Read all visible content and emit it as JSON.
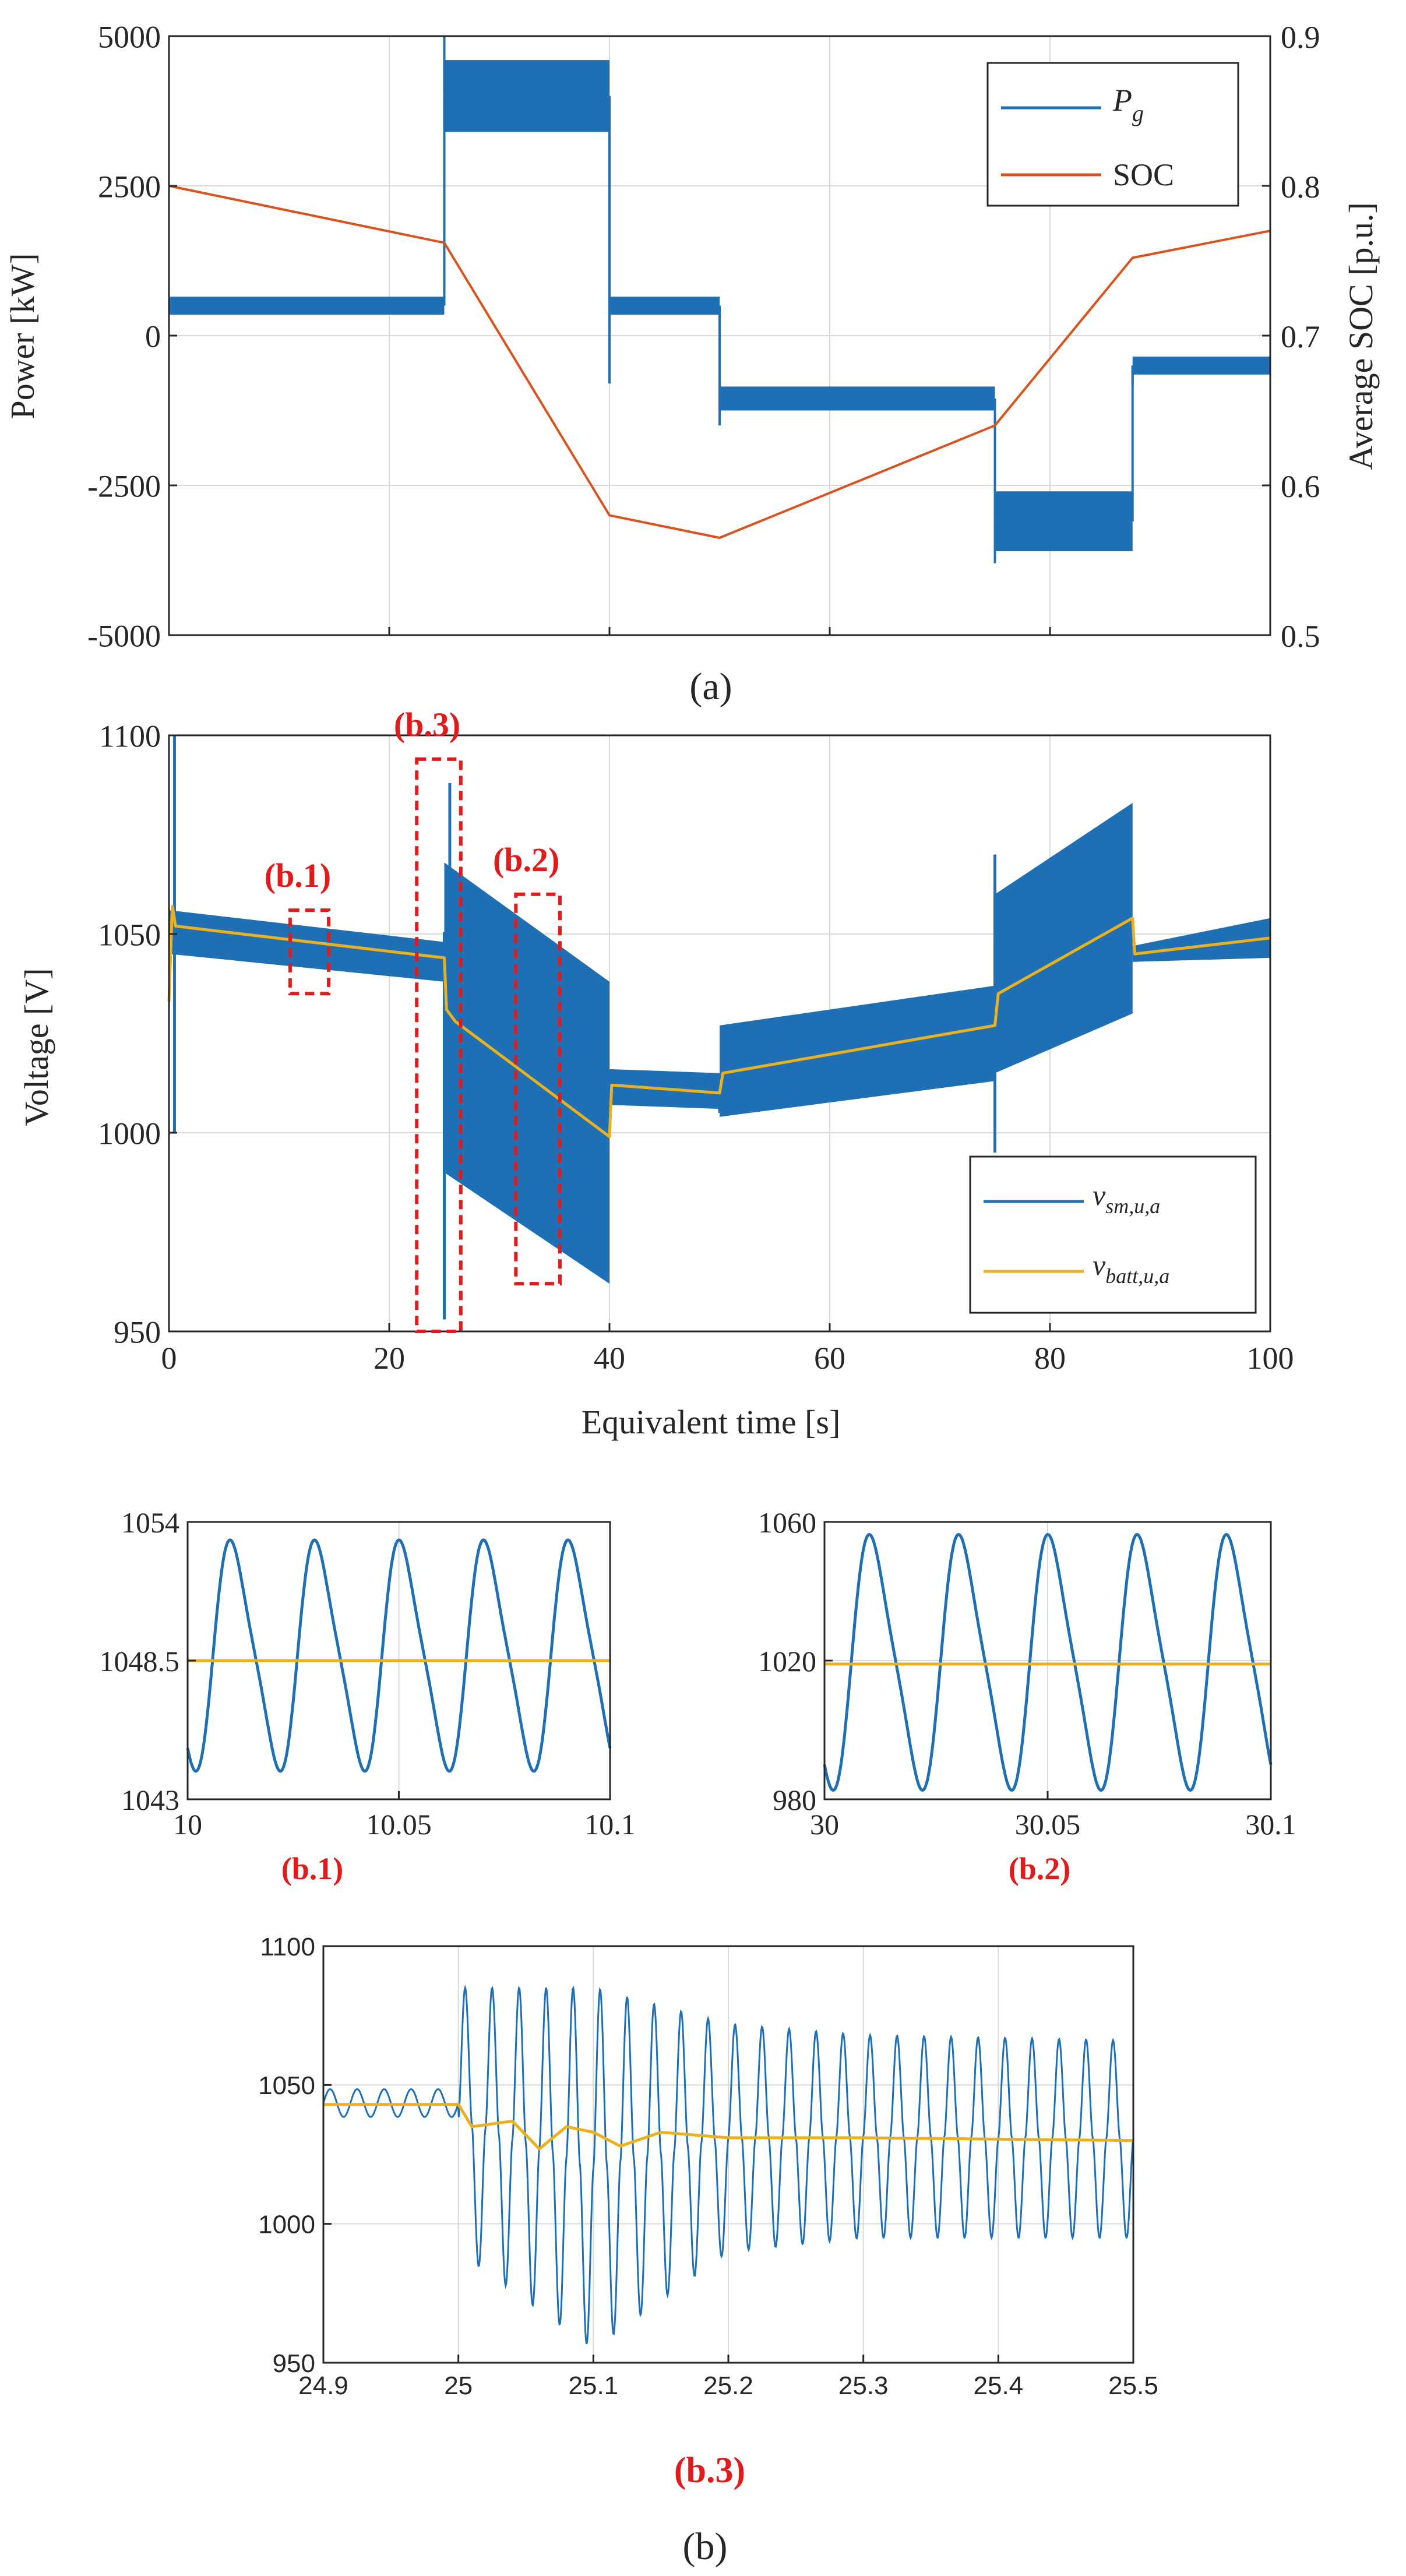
{
  "colors": {
    "blue": "#1f6fb4",
    "orange": "#d9531e",
    "yellow": "#ebb11c",
    "red": "#e31a1c",
    "grid": "#d9d9d9",
    "axis": "#262626"
  },
  "chart_data": [
    {
      "id": "a",
      "type": "line",
      "panel_label": "(a)",
      "ylabel": "Power [kW]",
      "ylabel_right": "Average SOC [p.u.]",
      "xlim": [
        0,
        100
      ],
      "ylim": [
        -5000,
        5000
      ],
      "ylim_right": [
        0.5,
        0.9
      ],
      "xticks": [
        0,
        20,
        40,
        60,
        80,
        100
      ],
      "yticks": [
        -5000,
        -2500,
        0,
        2500,
        5000
      ],
      "ytick_labels": [
        "-5000",
        "-2500",
        "0",
        "2500",
        "5000"
      ],
      "yticks_right": [
        0.5,
        0.6,
        0.7,
        0.8,
        0.9
      ],
      "ytick_labels_right": [
        "0.5",
        "0.6",
        "0.7",
        "0.8",
        "0.9"
      ],
      "legend": [
        "P_g",
        "SOC"
      ],
      "legend_position": "top-right",
      "series": [
        {
          "name": "P_g",
          "axis": "left",
          "style": "band",
          "segments": [
            {
              "x0": 0,
              "x1": 25,
              "center": 500,
              "half_width": 150
            },
            {
              "x0": 25,
              "x1": 40,
              "center": 4000,
              "half_width": 600
            },
            {
              "x0": 40,
              "x1": 50,
              "center": 500,
              "half_width": 150
            },
            {
              "x0": 50,
              "x1": 75,
              "center": -1050,
              "half_width": 200
            },
            {
              "x0": 75,
              "x1": 87.5,
              "center": -3100,
              "half_width": 500
            },
            {
              "x0": 87.5,
              "x1": 100,
              "center": -500,
              "half_width": 150
            }
          ],
          "spikes": [
            {
              "x": 25,
              "y": 5000
            },
            {
              "x": 40,
              "y": -800
            },
            {
              "x": 50,
              "y": -1500
            },
            {
              "x": 75,
              "y": -3800
            },
            {
              "x": 87.5,
              "y": -800
            }
          ]
        },
        {
          "name": "SOC",
          "axis": "right",
          "style": "line",
          "x": [
            0,
            25,
            40,
            50,
            75,
            87.5,
            100
          ],
          "y": [
            0.8,
            0.762,
            0.58,
            0.565,
            0.64,
            0.752,
            0.77
          ]
        }
      ]
    },
    {
      "id": "b",
      "type": "line",
      "panel_label": "(b)",
      "xlabel": "Equivalent time [s]",
      "ylabel": "Voltage [V]",
      "xlim": [
        0,
        100
      ],
      "ylim": [
        950,
        1100
      ],
      "xticks": [
        0,
        20,
        40,
        60,
        80,
        100
      ],
      "xtick_labels": [
        "0",
        "20",
        "40",
        "60",
        "80",
        "100"
      ],
      "yticks": [
        950,
        1000,
        1050,
        1100
      ],
      "ytick_labels": [
        "950",
        "1000",
        "1050",
        "1100"
      ],
      "legend": [
        "v_sm,u,a",
        "v_batt,u,a"
      ],
      "legend_position": "bottom-right",
      "series": [
        {
          "name": "v_sm,u,a",
          "style": "band",
          "segments": [
            {
              "x0": 0,
              "x1": 25,
              "upper": [
                1056,
                1048
              ],
              "lower": [
                1045,
                1038
              ]
            },
            {
              "x0": 25,
              "x1": 40,
              "upper": [
                1068,
                1038
              ],
              "lower": [
                990,
                962
              ]
            },
            {
              "x0": 40,
              "x1": 50,
              "upper": [
                1016,
                1015
              ],
              "lower": [
                1007,
                1006
              ]
            },
            {
              "x0": 50,
              "x1": 75,
              "upper": [
                1027,
                1037
              ],
              "lower": [
                1004,
                1013
              ]
            },
            {
              "x0": 75,
              "x1": 87.5,
              "upper": [
                1060,
                1083
              ],
              "lower": [
                1015,
                1030
              ]
            },
            {
              "x0": 87.5,
              "x1": 100,
              "upper": [
                1047,
                1054
              ],
              "lower": [
                1043,
                1044
              ]
            }
          ],
          "spikes": [
            {
              "x": 0.5,
              "y": 1100
            },
            {
              "x": 0.5,
              "y": 1000
            },
            {
              "x": 25,
              "y": 953
            },
            {
              "x": 25.5,
              "y": 1088
            },
            {
              "x": 50,
              "y": 1005
            },
            {
              "x": 75,
              "y": 995
            },
            {
              "x": 75,
              "y": 1070
            }
          ]
        },
        {
          "name": "v_batt,u,a",
          "style": "line",
          "x": [
            0,
            0.3,
            0.6,
            25,
            25.2,
            26,
            40,
            40.2,
            50,
            50.3,
            75,
            75.3,
            87.5,
            87.7,
            100
          ],
          "y": [
            1033,
            1057,
            1052,
            1044,
            1031,
            1028,
            999,
            1012,
            1010,
            1015,
            1027,
            1035,
            1054,
            1045,
            1049
          ]
        }
      ],
      "annotations": [
        {
          "label": "(b.1)",
          "x0": 11,
          "x1": 14.5,
          "y0": 1035,
          "y1": 1056
        },
        {
          "label": "(b.3)",
          "x0": 22.5,
          "x1": 26.5,
          "y0": 950,
          "y1": 1094
        },
        {
          "label": "(b.2)",
          "x0": 31.5,
          "x1": 35.5,
          "y0": 962,
          "y1": 1060
        }
      ]
    },
    {
      "id": "b1",
      "type": "line",
      "panel_label": "(b.1)",
      "xlim": [
        10,
        10.1
      ],
      "ylim": [
        1043,
        1054
      ],
      "xticks": [
        10,
        10.05,
        10.1
      ],
      "xtick_labels": [
        "10",
        "10.05",
        "10.1"
      ],
      "yticks": [
        1043,
        1048.5,
        1054
      ],
      "ytick_labels": [
        "1043",
        "1048.5",
        "1054"
      ],
      "series": [
        {
          "name": "v_sm,u,a",
          "style": "sine",
          "offset": 1048.7,
          "amplitude": 4.6,
          "period": 0.02,
          "phase": 0.006
        },
        {
          "name": "v_batt,u,a",
          "style": "line",
          "x": [
            10,
            10.1
          ],
          "y": [
            1048.5,
            1048.5
          ]
        }
      ]
    },
    {
      "id": "b2",
      "type": "line",
      "panel_label": "(b.2)",
      "xlim": [
        30,
        30.1
      ],
      "ylim": [
        980,
        1060
      ],
      "xticks": [
        30,
        30.05,
        30.1
      ],
      "xtick_labels": [
        "30",
        "30.05",
        "30.1"
      ],
      "yticks": [
        980,
        1020,
        1060
      ],
      "ytick_labels": [
        "980",
        "1020",
        "1060"
      ],
      "series": [
        {
          "name": "v_sm,u,a",
          "style": "sine",
          "offset": 1019.5,
          "amplitude": 37,
          "period": 0.02,
          "phase": 0.006
        },
        {
          "name": "v_batt,u,a",
          "style": "line",
          "x": [
            30,
            30.1
          ],
          "y": [
            1019,
            1019
          ]
        }
      ]
    },
    {
      "id": "b3",
      "type": "line",
      "panel_label": "(b.3)",
      "xlim": [
        24.9,
        25.5
      ],
      "ylim": [
        950,
        1100
      ],
      "xticks": [
        24.9,
        25,
        25.1,
        25.2,
        25.3,
        25.4,
        25.5
      ],
      "xtick_labels": [
        "24.9",
        "25",
        "25.1",
        "25.2",
        "25.3",
        "25.4",
        "25.5"
      ],
      "yticks": [
        950,
        1000,
        1050,
        1100
      ],
      "ytick_labels": [
        "950",
        "1000",
        "1050",
        "1100"
      ],
      "series": [
        {
          "name": "v_sm,u,a",
          "style": "envelope",
          "period": 0.02,
          "before": {
            "offset": 1043.5,
            "amplitude": 5
          },
          "after_x": [
            25,
            25.1,
            25.2,
            25.3,
            25.5
          ],
          "after_upper": [
            1085,
            1085,
            1072,
            1068,
            1066
          ],
          "after_lower": [
            990,
            955,
            990,
            995,
            995
          ]
        },
        {
          "name": "v_batt,u,a",
          "style": "line",
          "x": [
            24.9,
            25,
            25.01,
            25.04,
            25.06,
            25.08,
            25.1,
            25.12,
            25.15,
            25.2,
            25.3,
            25.5
          ],
          "y": [
            1043,
            1043,
            1035,
            1037,
            1027,
            1035,
            1033,
            1028,
            1033,
            1031,
            1031,
            1030
          ]
        }
      ]
    }
  ]
}
